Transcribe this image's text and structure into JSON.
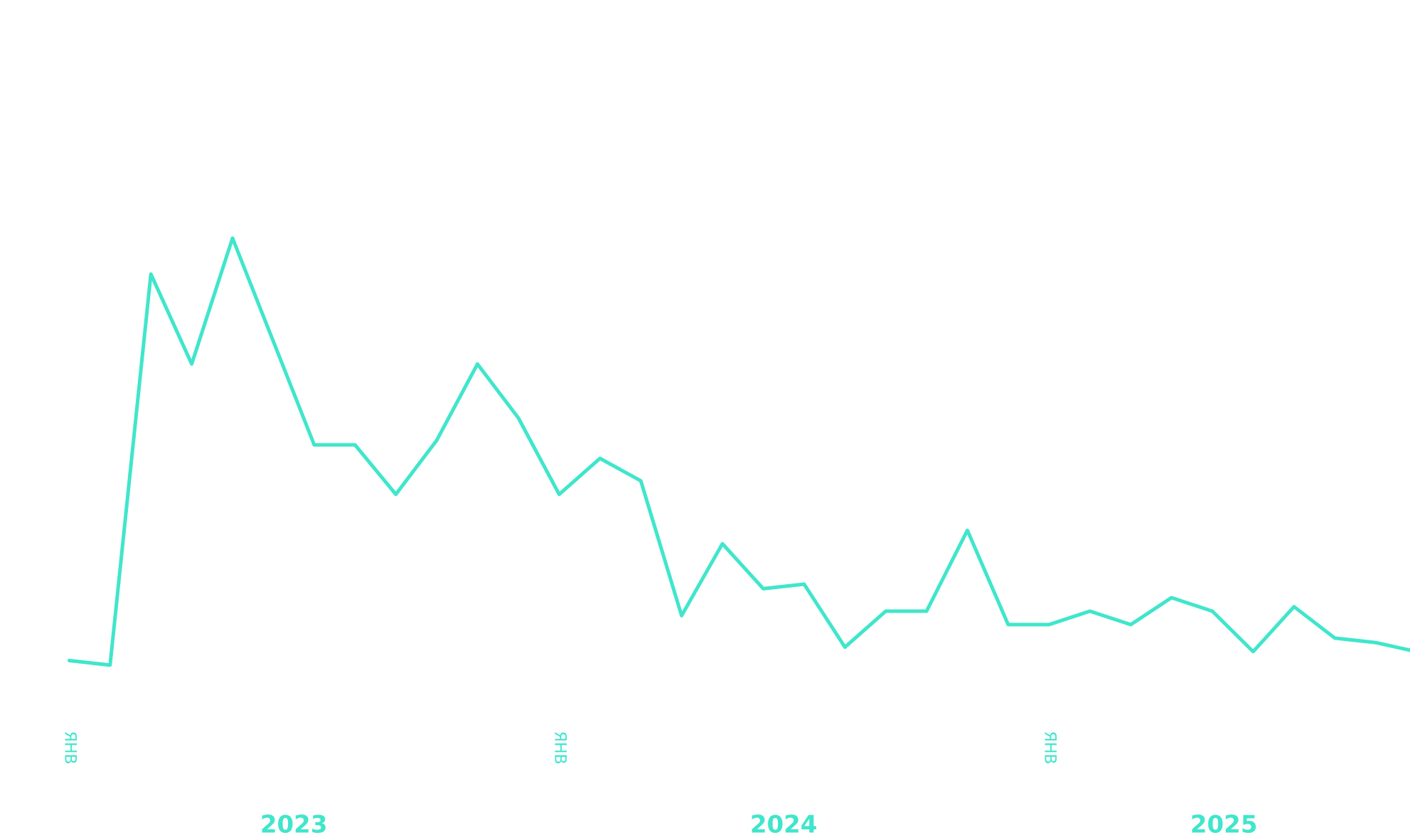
{
  "chart_data": {
    "type": "line",
    "categories": [
      "ЯНВ",
      null,
      null,
      null,
      null,
      null,
      null,
      null,
      null,
      null,
      null,
      null,
      "ЯНВ",
      null,
      null,
      null,
      null,
      null,
      null,
      null,
      null,
      null,
      null,
      null,
      "ЯНВ",
      null,
      null,
      null,
      null,
      null,
      null,
      null,
      null,
      null
    ],
    "years": [
      "2023",
      "2024",
      "2025"
    ],
    "values": [
      5,
      4,
      91,
      71,
      99,
      76,
      53,
      53,
      42,
      54,
      71,
      59,
      42,
      50,
      45,
      15,
      31,
      21,
      22,
      8,
      16,
      16,
      34,
      13,
      13,
      16,
      13,
      19,
      16,
      7,
      17,
      10,
      9,
      7
    ],
    "color": "#40e6cb",
    "ylim": [
      0,
      100
    ],
    "grid": false
  }
}
